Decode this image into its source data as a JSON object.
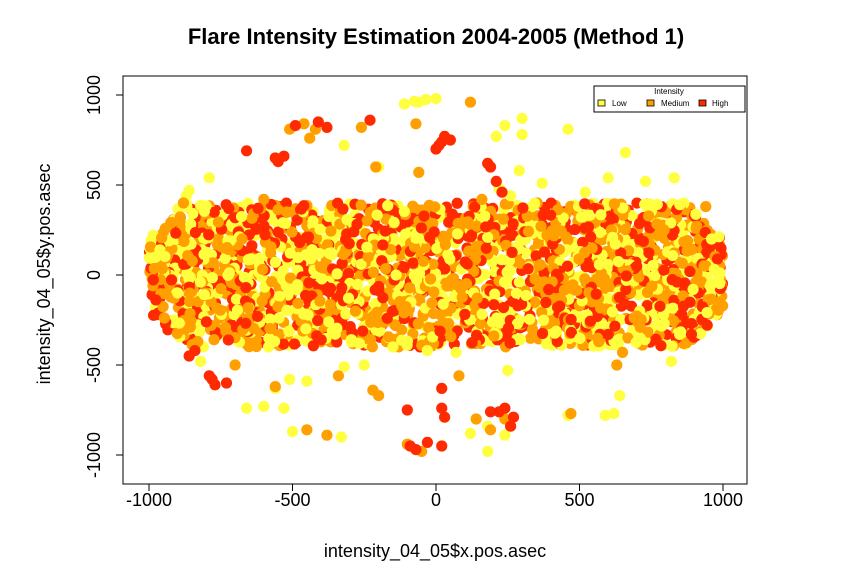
{
  "chart_data": {
    "type": "scatter",
    "title": "Flare Intensity Estimation 2004-2005 (Method 1)",
    "xlabel": "intensity_04_05$x.pos.asec",
    "ylabel": "intensity_04_05$y.pos.asec",
    "xlim": [
      -1050,
      1050
    ],
    "ylim": [
      -1050,
      1050
    ],
    "xticks": [
      -1000,
      -500,
      0,
      500,
      1000
    ],
    "yticks": [
      -1000,
      -500,
      0,
      500,
      1000
    ],
    "xtick_labels": [
      "-1000",
      "-500",
      "0",
      "500",
      "1000"
    ],
    "ytick_labels": [
      "-1000",
      "-500",
      "0",
      "500",
      "1000"
    ],
    "grid": false,
    "legend": {
      "title": "Intensity",
      "position": "top-right",
      "entries": [
        {
          "label": "Low",
          "color": "#FFFF40"
        },
        {
          "label": "Medium",
          "color": "#FFA000"
        },
        {
          "label": "High",
          "color": "#FF2A00"
        }
      ]
    },
    "band": {
      "x_range": [
        -1000,
        1000
      ],
      "y_range": [
        -400,
        400
      ]
    },
    "series": [
      {
        "name": "Low",
        "color": "#FFFF40",
        "points": [
          [
            -110,
            950
          ],
          [
            -75,
            965
          ],
          [
            -35,
            975
          ],
          [
            0,
            980
          ],
          [
            210,
            770
          ],
          [
            240,
            830
          ],
          [
            300,
            870
          ],
          [
            460,
            810
          ],
          [
            660,
            680
          ],
          [
            290,
            580
          ],
          [
            220,
            480
          ],
          [
            260,
            440
          ],
          [
            370,
            510
          ],
          [
            520,
            460
          ],
          [
            600,
            540
          ],
          [
            730,
            520
          ],
          [
            830,
            540
          ],
          [
            -320,
            720
          ],
          [
            -790,
            540
          ],
          [
            -870,
            440
          ],
          [
            -860,
            470
          ],
          [
            -200,
            600
          ],
          [
            -600,
            -730
          ],
          [
            -560,
            -630
          ],
          [
            -510,
            -580
          ],
          [
            -450,
            -590
          ],
          [
            -530,
            -740
          ],
          [
            -660,
            -740
          ],
          [
            -820,
            -480
          ],
          [
            -320,
            -510
          ],
          [
            -250,
            -500
          ],
          [
            -150,
            -400
          ],
          [
            -330,
            -900
          ],
          [
            -500,
            -870
          ],
          [
            240,
            -890
          ],
          [
            180,
            -980
          ],
          [
            120,
            -880
          ],
          [
            180,
            -840
          ],
          [
            460,
            -780
          ],
          [
            590,
            -780
          ],
          [
            620,
            -770
          ],
          [
            640,
            -670
          ],
          [
            820,
            -480
          ],
          [
            250,
            -530
          ],
          [
            70,
            -430
          ],
          [
            -30,
            -420
          ],
          [
            -900,
            -100
          ],
          [
            960,
            200
          ],
          [
            300,
            780
          ],
          [
            -60,
            960
          ]
        ]
      },
      {
        "name": "Medium",
        "color": "#FFA000",
        "points": [
          [
            -260,
            820
          ],
          [
            -420,
            810
          ],
          [
            -440,
            760
          ],
          [
            -460,
            840
          ],
          [
            -510,
            810
          ],
          [
            -70,
            840
          ],
          [
            -60,
            570
          ],
          [
            -210,
            600
          ],
          [
            120,
            960
          ],
          [
            160,
            420
          ],
          [
            -560,
            -620
          ],
          [
            -380,
            -890
          ],
          [
            -450,
            -860
          ],
          [
            -200,
            -670
          ],
          [
            -220,
            -640
          ],
          [
            190,
            -860
          ],
          [
            240,
            -800
          ],
          [
            140,
            -800
          ],
          [
            470,
            -770
          ],
          [
            -880,
            400
          ],
          [
            940,
            380
          ],
          [
            -50,
            -980
          ],
          [
            -100,
            -940
          ],
          [
            630,
            -500
          ],
          [
            -340,
            -560
          ],
          [
            80,
            -560
          ],
          [
            -700,
            -500
          ],
          [
            -600,
            420
          ],
          [
            650,
            -430
          ],
          [
            -830,
            -370
          ]
        ]
      },
      {
        "name": "High",
        "color": "#FF2A00",
        "points": [
          [
            -490,
            830
          ],
          [
            -410,
            850
          ],
          [
            -380,
            820
          ],
          [
            -230,
            860
          ],
          [
            -560,
            650
          ],
          [
            -550,
            630
          ],
          [
            -530,
            660
          ],
          [
            -660,
            690
          ],
          [
            20,
            740
          ],
          [
            10,
            720
          ],
          [
            0,
            700
          ],
          [
            50,
            750
          ],
          [
            30,
            770
          ],
          [
            180,
            620
          ],
          [
            190,
            600
          ],
          [
            210,
            520
          ],
          [
            230,
            460
          ],
          [
            -790,
            -560
          ],
          [
            -770,
            -610
          ],
          [
            -780,
            -580
          ],
          [
            -730,
            -600
          ],
          [
            -840,
            -420
          ],
          [
            -860,
            -450
          ],
          [
            -100,
            -750
          ],
          [
            20,
            -630
          ],
          [
            20,
            -740
          ],
          [
            30,
            -790
          ],
          [
            -90,
            -950
          ],
          [
            -70,
            -970
          ],
          [
            -30,
            -930
          ],
          [
            20,
            -950
          ],
          [
            190,
            -760
          ],
          [
            220,
            -760
          ],
          [
            240,
            -740
          ],
          [
            270,
            -790
          ],
          [
            260,
            -840
          ],
          [
            -620,
            370
          ],
          [
            -400,
            -360
          ],
          [
            600,
            -330
          ],
          [
            890,
            -270
          ]
        ]
      }
    ]
  }
}
